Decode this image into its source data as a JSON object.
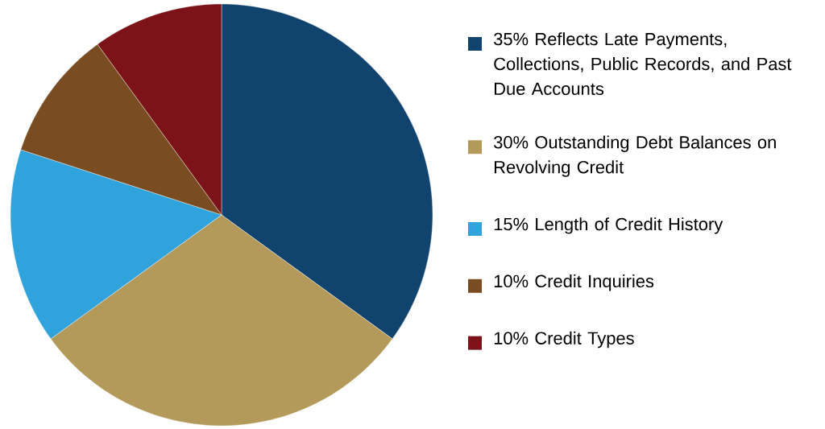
{
  "chart_data": {
    "type": "pie",
    "categories": [
      "35% Reflects Late Payments, Collections, Public Records, and Past Due Accounts",
      "30% Outstanding Debt Balances on Revolving Credit",
      "15% Length of Credit History",
      "10% Credit Inquiries",
      "10% Credit Types"
    ],
    "values": [
      35,
      30,
      15,
      10,
      10
    ],
    "colors": [
      "#11436f",
      "#b39a5a",
      "#30a2dc",
      "#7a4c21",
      "#7b1318"
    ],
    "legend": "right"
  }
}
